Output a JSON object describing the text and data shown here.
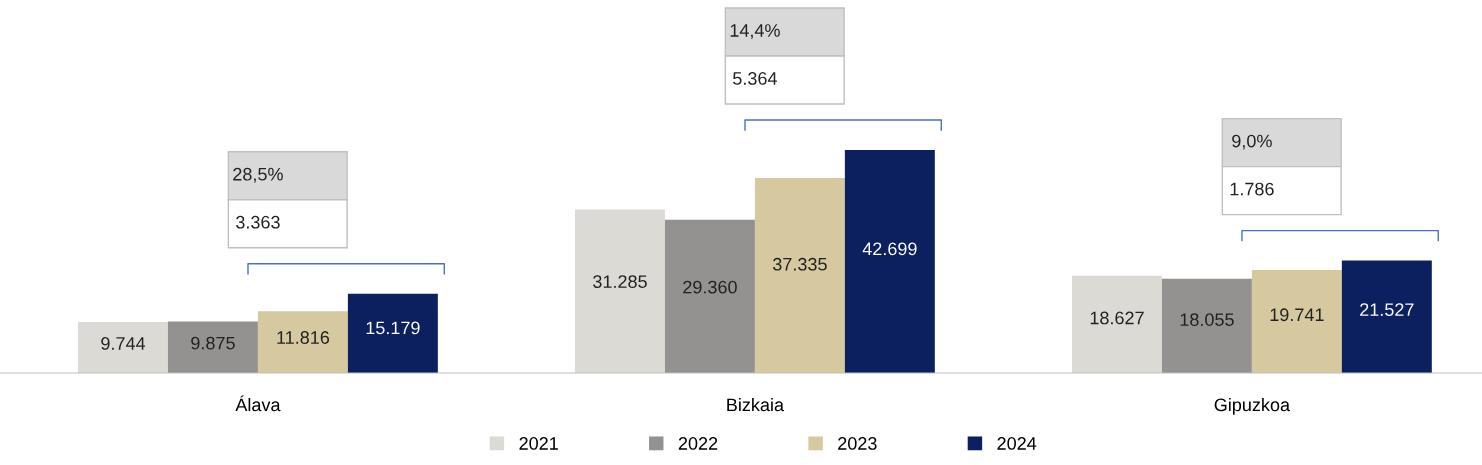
{
  "chart_data": {
    "type": "bar",
    "categories": [
      "Álava",
      "Bizkaia",
      "Gipuzkoa"
    ],
    "series": [
      {
        "name": "2021",
        "color": "#dcdad5",
        "values": [
          9744,
          31285,
          18627
        ],
        "value_labels": [
          "9.744",
          "31.285",
          "18.627"
        ]
      },
      {
        "name": "2022",
        "color": "#939290",
        "values": [
          9875,
          29360,
          18055
        ],
        "value_labels": [
          "9.875",
          "29.360",
          "18.055"
        ]
      },
      {
        "name": "2023",
        "color": "#d6c89f",
        "values": [
          11816,
          37335,
          19741
        ],
        "value_labels": [
          "11.816",
          "37.335",
          "19.741"
        ]
      },
      {
        "name": "2024",
        "color": "#0c1f5f",
        "values": [
          15179,
          42699,
          21527
        ],
        "value_labels": [
          "15.179",
          "42.699",
          "21.527"
        ]
      }
    ],
    "tick_labels": "x",
    "grid": false,
    "legend": "bottom",
    "annotations": [
      "28,5%",
      "3.363",
      "14,4%",
      "5.364",
      "9,0%",
      "1.786"
    ]
  }
}
